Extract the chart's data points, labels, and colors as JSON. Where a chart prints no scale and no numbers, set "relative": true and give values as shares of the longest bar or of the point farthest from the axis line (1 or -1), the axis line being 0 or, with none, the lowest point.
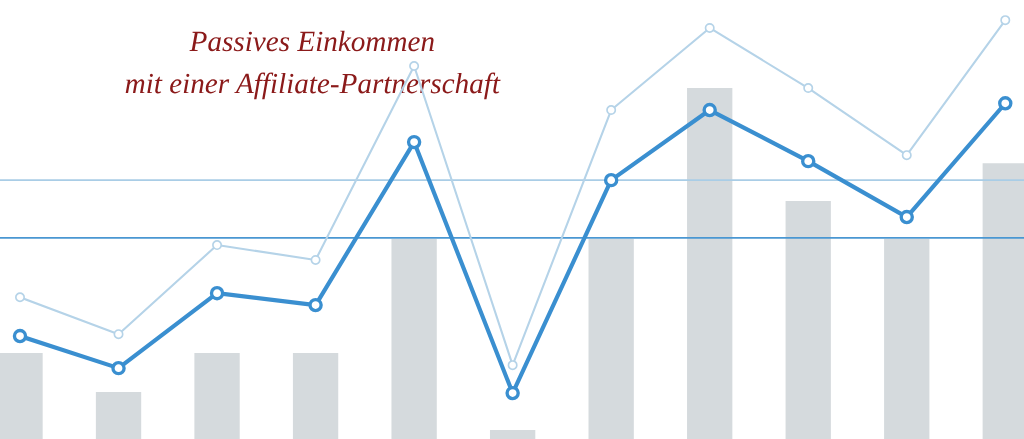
{
  "chart_data": [
    {
      "type": "bar",
      "title": "Passives Einkommen\nmit einer Affiliate-Partnerschaft",
      "relative": true,
      "categories": [
        null,
        null,
        null,
        null,
        null,
        null,
        null,
        null,
        null,
        null,
        null
      ],
      "series": [
        {
          "color": "#d5dadd",
          "values": [
            0.245,
            0.134,
            0.245,
            0.245,
            0.57,
            0.026,
            0.57,
            1,
            0.678,
            0.57,
            0.786
          ]
        }
      ]
    },
    {
      "type": "line",
      "relative": true,
      "categories": [
        null,
        null,
        null,
        null,
        null,
        null,
        null,
        null,
        null,
        null,
        null
      ],
      "series": [
        {
          "color": "#b5d3e8",
          "values": [
            0.257,
            0.158,
            0.397,
            0.357,
            0.877,
            0.075,
            0.759,
            0.979,
            0.818,
            0.638,
            1
          ]
        },
        {
          "color": "#3a8fd0",
          "values": [
            0.153,
            0.067,
            0.268,
            0.236,
            0.673,
            0,
            0.571,
            0.759,
            0.622,
            0.472,
            0.777
          ]
        }
      ],
      "ref_lines": [
        {
          "axis": "y",
          "value": 0.571,
          "color": "#a9cde6"
        },
        {
          "axis": "y",
          "value": 0.416,
          "color": "#4a97d2"
        }
      ],
      "marker": "circle",
      "line_style": "solid"
    }
  ]
}
